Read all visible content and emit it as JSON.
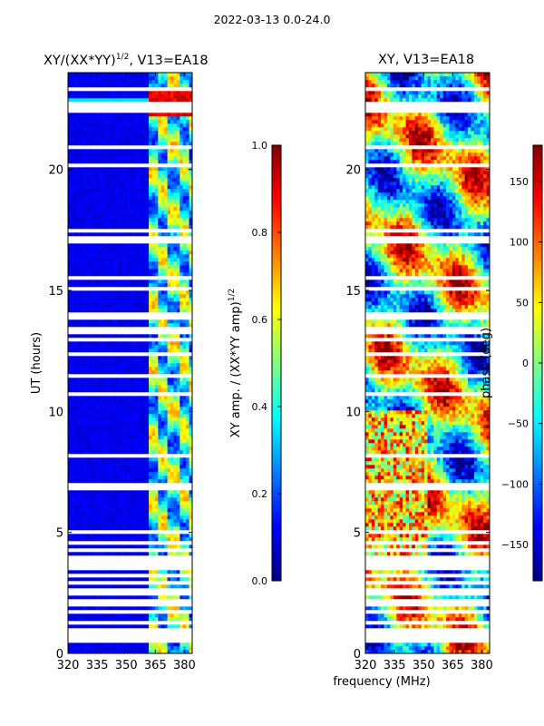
{
  "figure": {
    "suptitle": "2022-03-13 0.0-24.0"
  },
  "colors": {
    "empty_row": "#ffffff",
    "jet": [
      "#00007f",
      "#0000ff",
      "#007fff",
      "#00ffff",
      "#7fff7f",
      "#ffff00",
      "#ff7f00",
      "#ff0000",
      "#7f0000"
    ]
  },
  "chart_data": [
    {
      "type": "heatmap",
      "name": "amplitude",
      "title_main": "XY/(XX*YY)",
      "title_sup": "1/2",
      "title_rest": ", V13=EA18",
      "xlabel": "",
      "ylabel": "UT (hours)",
      "xlim": [
        320,
        384
      ],
      "ylim": [
        0,
        24
      ],
      "xticks": [
        320,
        335,
        350,
        365,
        380
      ],
      "yticks": [
        0,
        5,
        10,
        15,
        20
      ],
      "value_range": [
        0.0,
        1.0
      ],
      "typical_low_band": 0.08,
      "typical_high_band": 0.35,
      "high_band_start_mhz": 361,
      "bright_row_ut": 22.6,
      "colorbar": {
        "label_main": "XY amp. / (XX*YY amp)",
        "label_sup": "1/2",
        "ticks": [
          "0.0",
          "0.2",
          "0.4",
          "0.6",
          "0.8",
          "1.0"
        ],
        "range": [
          0.0,
          1.0
        ]
      }
    },
    {
      "type": "heatmap",
      "name": "phase",
      "title_main": "XY, V13=EA18",
      "xlabel": "frequency (MHz)",
      "ylabel": "",
      "xlim": [
        320,
        384
      ],
      "ylim": [
        0,
        24
      ],
      "xticks": [
        320,
        335,
        350,
        365,
        380
      ],
      "yticks": [
        0,
        5,
        10,
        15,
        20
      ],
      "value_range": [
        -180,
        180
      ],
      "colorbar": {
        "label_main": "phase (deg)",
        "ticks": [
          "−150",
          "−100",
          "−50",
          "0",
          "50",
          "100",
          "150"
        ],
        "values": [
          -150,
          -100,
          -50,
          0,
          50,
          100,
          150
        ],
        "range": [
          -180,
          180
        ]
      }
    }
  ]
}
